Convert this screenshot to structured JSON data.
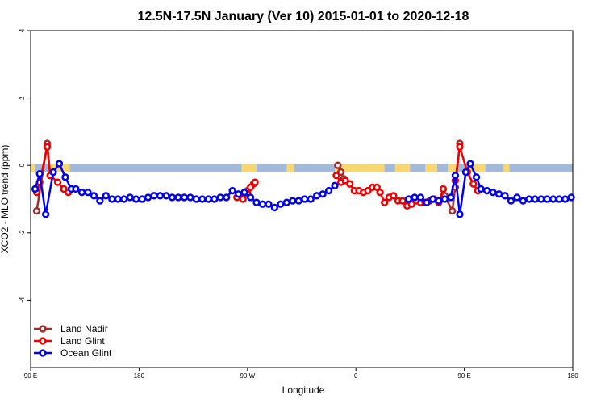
{
  "chart_data": {
    "type": "line",
    "title": "12.5N-17.5N January (Ver 10)   2015-01-01 to 2020-12-18",
    "xlabel": "Longitude",
    "ylabel": "XCO2 - MLO trend (ppm)",
    "xlim": [
      0,
      360
    ],
    "ylim": [
      -6,
      4
    ],
    "x_ticks": [
      {
        "value": 0,
        "label": "90 E"
      },
      {
        "value": 72,
        "label": "180"
      },
      {
        "value": 144,
        "label": "90 W"
      },
      {
        "value": 216,
        "label": "0"
      },
      {
        "value": 288,
        "label": "90 E"
      },
      {
        "value": 360,
        "label": "180"
      }
    ],
    "y_ticks": [
      {
        "value": 4,
        "label": "4"
      },
      {
        "value": 2,
        "label": "2"
      },
      {
        "value": 0,
        "label": "0"
      },
      {
        "value": -2,
        "label": "-2"
      },
      {
        "value": -4,
        "label": "-4"
      }
    ],
    "grid": false,
    "legend_position": "bottom-left",
    "surface_band": {
      "y_top": 0.05,
      "y_bottom": -0.2,
      "ocean_color": "#a3b9d9",
      "land_color": "#f7d774",
      "land_segments": [
        [
          0,
          3
        ],
        [
          12,
          26
        ],
        [
          140,
          150
        ],
        [
          170,
          175
        ],
        [
          202,
          235
        ],
        [
          242,
          252
        ],
        [
          262,
          270
        ],
        [
          277,
          284
        ],
        [
          291,
          302
        ],
        [
          314,
          318
        ]
      ]
    },
    "series": [
      {
        "name": "Land Nadir",
        "color": "#a52a2a",
        "x": [
          4,
          11,
          13
        ],
        "y": [
          -1.35,
          0.65,
          -0.3
        ]
      },
      {
        "name": "Land Nadir",
        "color": "#a52a2a",
        "x": [
          140,
          144,
          148
        ],
        "y": [
          -0.95,
          -0.75,
          -0.55
        ]
      },
      {
        "name": "Land Nadir",
        "color": "#a52a2a",
        "x": [
          204,
          206,
          208
        ],
        "y": [
          0.0,
          -0.2,
          -0.4
        ]
      },
      {
        "name": "Land Nadir",
        "color": "#a52a2a",
        "x": [
          275,
          280,
          282,
          285
        ],
        "y": [
          -0.9,
          -1.35,
          -0.65,
          0.65
        ]
      },
      {
        "name": "Land Glint",
        "color": "#ee0000",
        "x": [
          4,
          6,
          11,
          13,
          18,
          22,
          25
        ],
        "y": [
          -0.8,
          -0.5,
          0.55,
          -0.3,
          -0.5,
          -0.7,
          -0.8
        ]
      },
      {
        "name": "Land Glint",
        "color": "#ee0000",
        "x": [
          137,
          141,
          144,
          146,
          149
        ],
        "y": [
          -0.95,
          -1.0,
          -0.85,
          -0.65,
          -0.5
        ]
      },
      {
        "name": "Land Glint",
        "color": "#ee0000",
        "x": [
          203,
          206,
          209,
          212,
          215,
          218,
          221,
          224,
          227,
          230,
          232,
          235,
          238,
          241,
          244,
          247,
          250,
          253,
          256,
          259,
          262,
          265,
          268,
          271,
          274
        ],
        "y": [
          -0.3,
          -0.5,
          -0.45,
          -0.55,
          -0.75,
          -0.75,
          -0.8,
          -0.75,
          -0.65,
          -0.65,
          -0.8,
          -1.1,
          -0.95,
          -0.9,
          -1.05,
          -1.05,
          -1.2,
          -1.15,
          -1.05,
          -1.1,
          -1.1,
          -1.05,
          -1.0,
          -1.1,
          -0.7
        ]
      },
      {
        "name": "Land Glint",
        "color": "#ee0000",
        "x": [
          282,
          285,
          290,
          294,
          297
        ],
        "y": [
          -0.45,
          0.55,
          -0.2,
          -0.55,
          -0.75
        ]
      },
      {
        "name": "Ocean Glint",
        "color": "#0000ee",
        "x": [
          3,
          6,
          10,
          15,
          19,
          23,
          27,
          30,
          34,
          38,
          42,
          46,
          50,
          54,
          58,
          62,
          66,
          70,
          74,
          78,
          82,
          86,
          90,
          94,
          98,
          102,
          106,
          110,
          114,
          118,
          122,
          126,
          130,
          134,
          138,
          142,
          146,
          150,
          154,
          158,
          162,
          166,
          170,
          174,
          178,
          182,
          186,
          190,
          194,
          198,
          202
        ],
        "y": [
          -0.7,
          -0.25,
          -1.45,
          -0.2,
          0.05,
          -0.35,
          -0.7,
          -0.7,
          -0.8,
          -0.8,
          -0.9,
          -1.05,
          -0.9,
          -1.0,
          -1.0,
          -1.0,
          -0.95,
          -1.0,
          -1.0,
          -0.95,
          -0.9,
          -0.9,
          -0.9,
          -0.95,
          -0.95,
          -0.95,
          -0.95,
          -1.0,
          -1.0,
          -1.0,
          -1.0,
          -0.95,
          -0.95,
          -0.75,
          -0.85,
          -0.8,
          -0.95,
          -1.1,
          -1.15,
          -1.15,
          -1.25,
          -1.15,
          -1.1,
          -1.05,
          -1.05,
          -1.0,
          -1.0,
          -0.9,
          -0.85,
          -0.75,
          -0.6
        ]
      },
      {
        "name": "Ocean Glint",
        "color": "#0000ee",
        "x": [
          251,
          255,
          259,
          263,
          267,
          271,
          275,
          279,
          282,
          285,
          289,
          292,
          296,
          299,
          303,
          307,
          311,
          315,
          319,
          323,
          327,
          331,
          335,
          339,
          343,
          347,
          351,
          355,
          359
        ],
        "y": [
          -1.0,
          -0.95,
          -0.95,
          -1.1,
          -1.0,
          -1.05,
          -1.0,
          -0.95,
          -0.3,
          -1.45,
          -0.2,
          0.05,
          -0.35,
          -0.7,
          -0.75,
          -0.8,
          -0.85,
          -0.9,
          -1.05,
          -0.95,
          -1.05,
          -1.0,
          -1.0,
          -1.0,
          -1.0,
          -1.0,
          -1.0,
          -1.0,
          -0.95
        ]
      }
    ],
    "legend": [
      {
        "name": "Land Nadir",
        "color": "#a52a2a"
      },
      {
        "name": "Land Glint",
        "color": "#ee0000"
      },
      {
        "name": "Ocean Glint",
        "color": "#0000ee"
      }
    ]
  }
}
